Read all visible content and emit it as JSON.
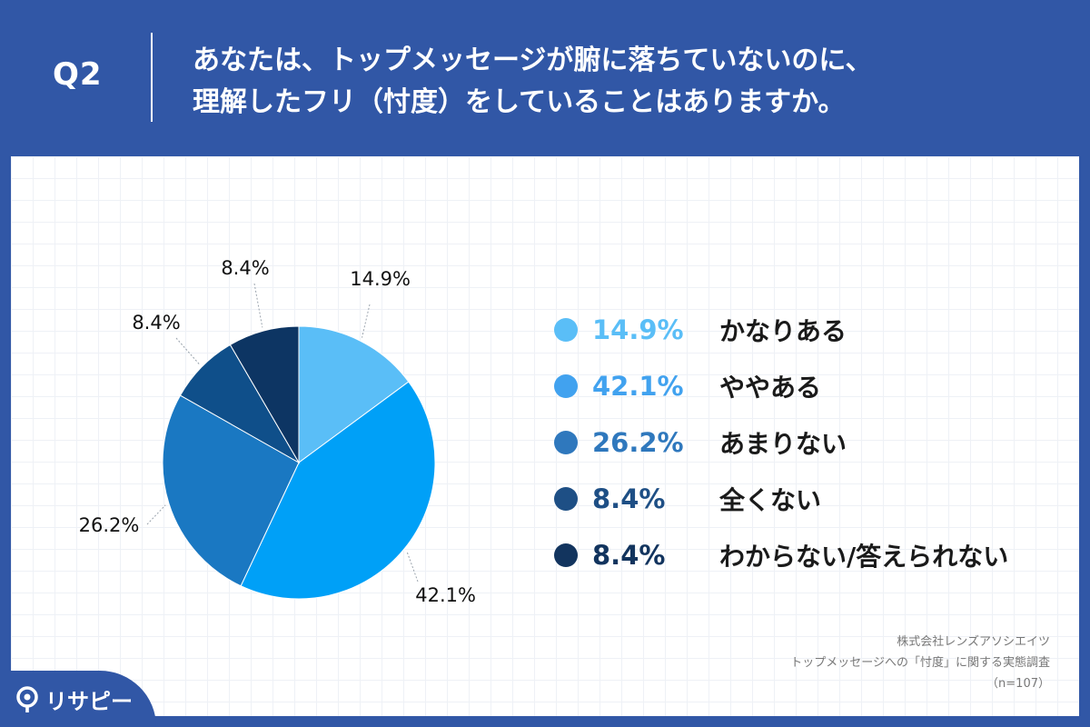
{
  "header": {
    "q_label": "Q2",
    "question_lines": [
      "あなたは、トップメッセージが腑に落ちていないのに、",
      "理解したフリ（忖度）をしていることはありますか。"
    ]
  },
  "chart_data": {
    "type": "pie",
    "categories": [
      "かなりある",
      "ややある",
      "あまりない",
      "全くない",
      "わからない/答えられない"
    ],
    "values": [
      14.9,
      42.1,
      26.2,
      8.4,
      8.4
    ],
    "value_labels": [
      "14.9%",
      "42.1%",
      "26.2%",
      "8.4%",
      "8.4%"
    ],
    "colors": [
      "#5abef7",
      "#00a0f7",
      "#1a78c2",
      "#0f4f8a",
      "#0d3563"
    ],
    "start_angle": "top (12 o'clock), clockwise",
    "legend_position": "right"
  },
  "legend": {
    "items": [
      {
        "pct": "14.9%",
        "label": "かなりある",
        "color": "#5abef7",
        "text_color": "#5abef7"
      },
      {
        "pct": "42.1%",
        "label": "ややある",
        "color": "#41a2ef",
        "text_color": "#41a2ef"
      },
      {
        "pct": "26.2%",
        "label": "あまりない",
        "color": "#2f78bd",
        "text_color": "#2f78bd"
      },
      {
        "pct": "8.4%",
        "label": "全くない",
        "color": "#1e4f85",
        "text_color": "#1e4f85"
      },
      {
        "pct": "8.4%",
        "label": "わからない/答えられない",
        "color": "#12345e",
        "text_color": "#12345e"
      }
    ]
  },
  "credits": {
    "company": "株式会社レンズアソシエイツ",
    "survey": "トップメッセージへの「忖度」に関する実態調査",
    "sample": "（n=107）"
  },
  "logo": {
    "text": "リサピー",
    "icon": "pin-logo-icon"
  }
}
